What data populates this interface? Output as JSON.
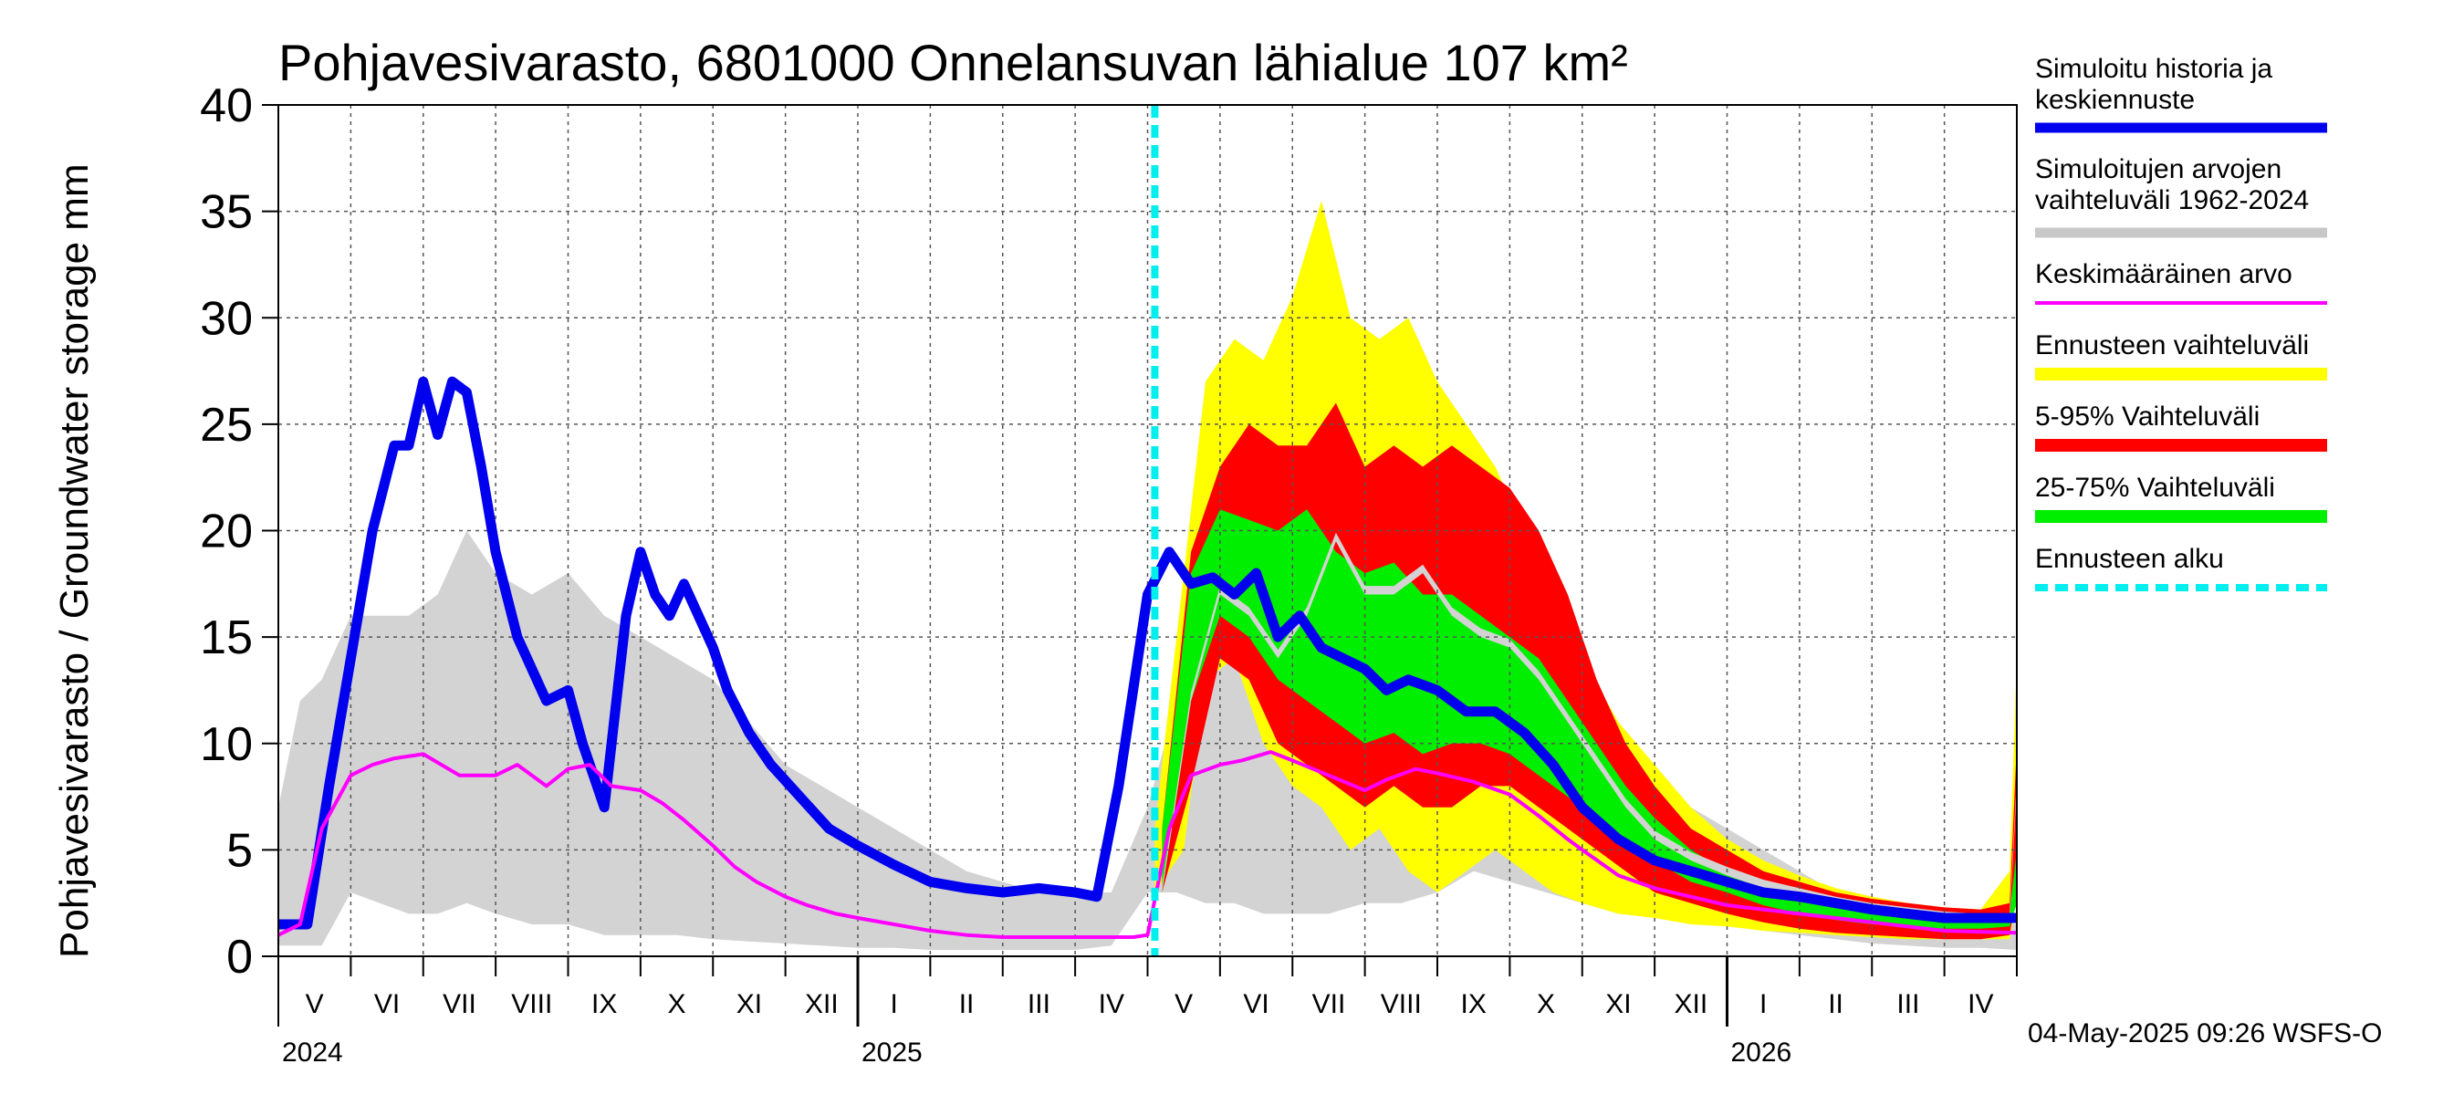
{
  "chart_data": {
    "type": "area",
    "title": "Pohjavesivarasto, 6801000 Onnelansuvan lähialue 107 km²",
    "ylabel": "Pohjavesivarasto / Groundwater storage   mm",
    "ylim": [
      0,
      40
    ],
    "yticks": [
      "0",
      "5",
      "10",
      "15",
      "20",
      "25",
      "30",
      "35",
      "40"
    ],
    "months": [
      "V",
      "VI",
      "VII",
      "VIII",
      "IX",
      "X",
      "XI",
      "XII",
      "I",
      "II",
      "III",
      "IV",
      "V",
      "VI",
      "VII",
      "VIII",
      "IX",
      "X",
      "XI",
      "XII",
      "I",
      "II",
      "III",
      "IV"
    ],
    "years": [
      "2024",
      "2025",
      "2026"
    ],
    "timestamp": "04-May-2025 09:26 WSFS-O",
    "x_months_axis": "months since 2024-04-29",
    "forecast_start": 12.1,
    "legend": [
      {
        "label": "Simuloitu historia ja keskiennuste",
        "color": "#0000ee"
      },
      {
        "label": "Simuloitujen arvojen vaihteluväli 1962-2024",
        "color": "#c8c8c8"
      },
      {
        "label": "Keskimääräinen arvo",
        "color": "#ff00ff"
      },
      {
        "label": "Ennusteen vaihteluväli",
        "color": "#ffff00"
      },
      {
        "label": "5-95% Vaihteluväli",
        "color": "#ff0000"
      },
      {
        "label": "25-75% Vaihteluväli",
        "color": "#00ee00"
      },
      {
        "label": "Ennusteen alku",
        "color": "#00eeee"
      }
    ],
    "series": [
      {
        "name": "Simuloitu historia ja keskiennuste",
        "x": [
          0,
          0.4,
          0.7,
          1.0,
          1.3,
          1.6,
          1.8,
          2.0,
          2.2,
          2.4,
          2.6,
          2.8,
          3.0,
          3.3,
          3.7,
          4.0,
          4.2,
          4.5,
          4.8,
          5.0,
          5.2,
          5.4,
          5.6,
          5.8,
          6.0,
          6.2,
          6.5,
          6.8,
          7.2,
          7.6,
          8.0,
          8.5,
          9.0,
          9.5,
          10.0,
          10.5,
          11.0,
          11.3,
          11.6,
          12.0,
          12.3,
          12.6,
          12.9,
          13.2,
          13.5,
          13.8,
          14.1,
          14.4,
          14.7,
          15.0,
          15.3,
          15.6,
          16.0,
          16.4,
          16.8,
          17.2,
          17.6,
          18.0,
          18.5,
          19.0,
          19.5,
          20.0,
          20.5,
          21.0,
          21.5,
          22.0,
          22.5,
          23.0,
          23.5,
          24.0
        ],
        "y": [
          1.5,
          1.5,
          8,
          14,
          20,
          24,
          24,
          27,
          24.5,
          27,
          26.5,
          23,
          19,
          15,
          12,
          12.5,
          10,
          7,
          16,
          19,
          17,
          16,
          17.5,
          16,
          14.5,
          12.5,
          10.5,
          9,
          7.5,
          6,
          5.2,
          4.3,
          3.5,
          3.2,
          3.0,
          3.2,
          3.0,
          2.8,
          8,
          17,
          19,
          17.5,
          17.8,
          17,
          18,
          15,
          16,
          14.5,
          14,
          13.5,
          12.5,
          13,
          12.5,
          11.5,
          11.5,
          10.5,
          9,
          7,
          5.5,
          4.5,
          4,
          3.5,
          3,
          2.8,
          2.5,
          2.2,
          2,
          1.8,
          1.8,
          1.8
        ]
      },
      {
        "name": "Keskimääräinen arvo",
        "x": [
          0,
          0.3,
          0.6,
          1.0,
          1.3,
          1.6,
          2.0,
          2.5,
          3.0,
          3.3,
          3.7,
          4.0,
          4.3,
          4.6,
          5.0,
          5.3,
          5.6,
          6.0,
          6.3,
          6.6,
          7.0,
          7.3,
          7.7,
          8.0,
          8.5,
          9.0,
          9.5,
          10.0,
          11.0,
          11.8,
          12.0,
          12.3,
          12.6,
          13.0,
          13.3,
          13.7,
          14.0,
          14.5,
          15.0,
          15.3,
          15.7,
          16.0,
          16.5,
          17.0,
          17.4,
          17.8,
          18.0,
          18.5,
          19.0,
          19.5,
          20.0,
          21.0,
          22.0,
          23.0,
          24.0
        ],
        "y": [
          1.0,
          1.5,
          6,
          8.5,
          9,
          9.3,
          9.5,
          8.5,
          8.5,
          9,
          8,
          8.8,
          9,
          8,
          7.8,
          7.2,
          6.4,
          5.2,
          4.2,
          3.5,
          2.8,
          2.4,
          2.0,
          1.8,
          1.5,
          1.2,
          1.0,
          0.9,
          0.9,
          0.9,
          1.0,
          6,
          8.5,
          9,
          9.2,
          9.6,
          9.2,
          8.5,
          7.8,
          8.3,
          8.8,
          8.6,
          8.2,
          7.6,
          6.6,
          5.5,
          5,
          3.8,
          3.2,
          2.8,
          2.4,
          2.0,
          1.6,
          1.2,
          1.1
        ]
      }
    ],
    "bands": [
      {
        "name": "Simuloitujen arvojen vaihteluväli 1962-2024",
        "color": "#d3d3d3",
        "x": [
          0,
          0.3,
          0.6,
          1.0,
          1.4,
          1.8,
          2.2,
          2.6,
          3.0,
          3.5,
          4.0,
          4.5,
          5.0,
          5.5,
          6.0,
          6.5,
          7.0,
          7.5,
          8.0,
          8.5,
          9.0,
          9.5,
          10.0,
          10.5,
          11.0,
          11.5,
          12.0,
          12.4,
          12.8,
          13.2,
          13.6,
          14.0,
          14.5,
          15.0,
          15.5,
          16.0,
          16.5,
          17.0,
          17.5,
          18.0,
          18.5,
          19.0,
          19.5,
          20.0,
          20.5,
          21.0,
          21.5,
          22.0,
          22.5,
          23.0,
          23.5,
          24.0
        ],
        "lo": [
          0.5,
          0.5,
          0.5,
          3,
          2.5,
          2,
          2,
          2.5,
          2,
          1.5,
          1.5,
          1,
          1,
          1,
          0.8,
          0.7,
          0.6,
          0.5,
          0.4,
          0.4,
          0.3,
          0.3,
          0.3,
          0.3,
          0.3,
          0.5,
          3,
          3,
          2.5,
          2.5,
          2,
          2,
          2,
          2.5,
          2.5,
          3,
          4,
          3.5,
          3,
          2.5,
          2,
          2,
          1.5,
          1.5,
          1.2,
          1,
          0.8,
          0.6,
          0.5,
          0.4,
          0.4,
          0.3
        ],
        "hi": [
          7,
          12,
          13,
          16,
          16,
          16,
          17,
          20,
          18,
          17,
          18,
          16,
          15,
          14,
          13,
          11,
          9,
          8,
          7,
          6,
          5,
          4,
          3.5,
          3,
          3,
          3,
          7,
          12,
          13,
          14,
          12,
          14,
          13,
          13,
          12,
          12,
          13,
          12,
          11,
          10,
          9,
          8,
          7,
          6,
          5,
          4,
          3,
          2.5,
          2,
          2,
          1.8,
          1.5
        ]
      },
      {
        "name": "Ennusteen vaihteluväli",
        "color": "#ffff00",
        "x": [
          12.1,
          12.5,
          12.8,
          13.2,
          13.6,
          14.0,
          14.4,
          14.8,
          15.2,
          15.6,
          16.0,
          16.4,
          16.8,
          17.2,
          17.6,
          18.0,
          18.5,
          19.0,
          19.5,
          20.0,
          20.5,
          21.0,
          21.5,
          22.0,
          22.5,
          23.0,
          23.5,
          23.9,
          24.0
        ],
        "lo": [
          3,
          5,
          13,
          14,
          10,
          8,
          7,
          5,
          6,
          4,
          3,
          4,
          5,
          4,
          3,
          2.5,
          2,
          1.8,
          1.5,
          1.4,
          1.2,
          1.1,
          1,
          0.9,
          0.8,
          0.8,
          0.8,
          0.8,
          3
        ],
        "hi": [
          6,
          18,
          27,
          29,
          28,
          31,
          35.5,
          30,
          29,
          30,
          27,
          25,
          23,
          20,
          17,
          14,
          11,
          9,
          7,
          5.5,
          4.5,
          3.8,
          3.2,
          2.8,
          2.5,
          2.3,
          2.2,
          4,
          14
        ]
      },
      {
        "name": "5-95% Vaihteluväli",
        "color": "#ff0000",
        "x": [
          12.2,
          12.6,
          13.0,
          13.4,
          13.8,
          14.2,
          14.6,
          15.0,
          15.4,
          15.8,
          16.2,
          16.6,
          17.0,
          17.4,
          17.8,
          18.2,
          18.6,
          19.0,
          19.5,
          20.0,
          20.5,
          21.0,
          21.5,
          22.0,
          22.5,
          23.0,
          23.5,
          23.9,
          24.0
        ],
        "lo": [
          3,
          8,
          14,
          13,
          10,
          9,
          8,
          7,
          8,
          7,
          7,
          8,
          8,
          7,
          6,
          5,
          4,
          3,
          2.5,
          2,
          1.6,
          1.3,
          1.1,
          1,
          0.9,
          0.8,
          0.8,
          1,
          3
        ],
        "hi": [
          6,
          19,
          23,
          25,
          24,
          24,
          26,
          23,
          24,
          23,
          24,
          23,
          22,
          20,
          17,
          13,
          10,
          8,
          6,
          5,
          4,
          3.5,
          3,
          2.7,
          2.5,
          2.3,
          2.2,
          2.5,
          10
        ]
      },
      {
        "name": "25-75% Vaihteluväli",
        "color": "#00ee00",
        "x": [
          12.2,
          12.6,
          13.0,
          13.4,
          13.8,
          14.2,
          14.6,
          15.0,
          15.4,
          15.8,
          16.2,
          16.6,
          17.0,
          17.4,
          17.8,
          18.2,
          18.6,
          19.0,
          19.5,
          20.0,
          20.5,
          21.0,
          21.5,
          22.0,
          22.5,
          23.0,
          23.5,
          23.9,
          24.0
        ],
        "lo": [
          3,
          12,
          16,
          15,
          13,
          12,
          11,
          10,
          10.5,
          9.5,
          10,
          10,
          9.5,
          8.5,
          7.5,
          6.5,
          5.5,
          4.5,
          3.5,
          3,
          2.4,
          2,
          1.7,
          1.5,
          1.4,
          1.3,
          1.3,
          1.4,
          2.5
        ],
        "hi": [
          6,
          18,
          21,
          20.5,
          20,
          21,
          19,
          18,
          18.5,
          17,
          17,
          16,
          15,
          14,
          12,
          10,
          8,
          6.5,
          5,
          4,
          3.5,
          3,
          2.6,
          2.3,
          2.1,
          2,
          2,
          2,
          5
        ]
      },
      {
        "name": "Simuloitujen median (vaalea)",
        "color": "#d3d3d3",
        "x": [
          12.2,
          12.6,
          13.0,
          13.4,
          13.8,
          14.2,
          14.6,
          15.0,
          15.4,
          15.8,
          16.2,
          16.6,
          17.0,
          17.4,
          17.8,
          18.2,
          18.6,
          19.0,
          19.5,
          20.0,
          20.5,
          21.0,
          21.5,
          22.0,
          22.5,
          23.0,
          23.5,
          23.9,
          24.0
        ],
        "lo": [
          3,
          12,
          17,
          16,
          14,
          16,
          19.5,
          17,
          17,
          18,
          16,
          15,
          14.5,
          13,
          11,
          9,
          7,
          5.5,
          4.5,
          3.8,
          3.2,
          2.8,
          2.4,
          2.1,
          1.9,
          1.7,
          1.6,
          1.6,
          8
        ],
        "hi": [
          3.3,
          12.4,
          17.4,
          16.4,
          14.4,
          16.4,
          19.9,
          17.4,
          17.4,
          18.4,
          16.4,
          15.4,
          14.9,
          13.4,
          11.4,
          9.4,
          7.4,
          5.9,
          4.9,
          4.2,
          3.6,
          3.2,
          2.8,
          2.5,
          2.3,
          2.1,
          2.0,
          2.0,
          8.4
        ]
      }
    ]
  }
}
